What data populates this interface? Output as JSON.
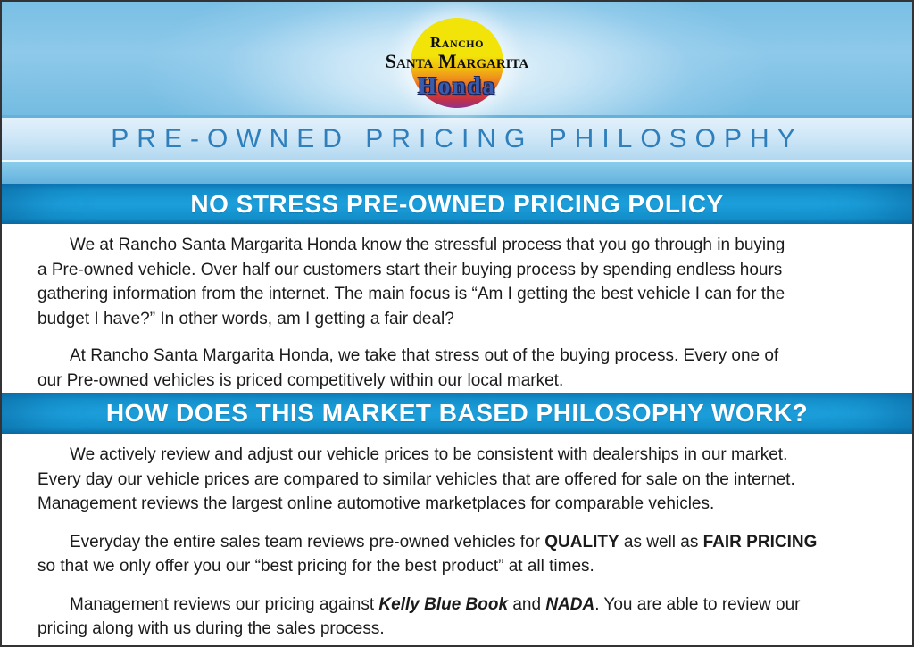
{
  "colors": {
    "page_border": "#333336",
    "header_sky_blue": "#79bfe4",
    "header_glow": "#e8f5fd",
    "title_band_bg_top": "#e3f1fb",
    "title_band_bg_bottom": "#b2d8f0",
    "title_text_blue": "#2e7fbc",
    "sub_band_blue": "#73bce3",
    "banner_blue": "#1ea4e0",
    "banner_blue_edge": "#0d7cba",
    "banner_text": "#ffffff",
    "body_text": "#1b1b1b",
    "logo_yellow": "#f2e409",
    "logo_orange": "#ee831f",
    "logo_red": "#dd3b28",
    "logo_purple": "#8e3390",
    "logo_honda_blue": "#3a5cad"
  },
  "logo": {
    "line1": "Rancho",
    "line2": "Santa Margarita",
    "brand": "Honda"
  },
  "title": "PRE-OWNED PRICING PHILOSOPHY",
  "sections": [
    {
      "banner": "NO STRESS PRE-OWNED PRICING POLICY",
      "paragraphs": [
        {
          "lines": [
            [
              {
                "t": "We at Rancho Santa Margarita Honda know the stressful process that you go through in buying"
              }
            ],
            [
              {
                "t": "a Pre-owned vehicle. Over half our customers start their buying process by spending endless hours"
              }
            ],
            [
              {
                "t": "gathering information from the internet. The main focus is “Am I getting the best vehicle I can for the"
              }
            ],
            [
              {
                "t": "budget I have?” In other words, am I getting a fair deal?"
              }
            ]
          ]
        },
        {
          "lines": [
            [
              {
                "t": "At Rancho Santa Margarita Honda, we take that stress out of the buying process. Every one of"
              }
            ],
            [
              {
                "t": "our Pre-owned vehicles is priced competitively within our local market."
              }
            ]
          ]
        }
      ]
    },
    {
      "banner": "HOW DOES THIS MARKET BASED PHILOSOPHY WORK?",
      "paragraphs": [
        {
          "lines": [
            [
              {
                "t": "We actively review and adjust our vehicle prices to be consistent with dealerships in our market."
              }
            ],
            [
              {
                "t": "Every day our vehicle prices are compared to similar vehicles that are offered for sale on the internet."
              }
            ],
            [
              {
                "t": "Management reviews the largest online automotive marketplaces for comparable vehicles."
              }
            ]
          ]
        },
        {
          "lines": [
            [
              {
                "t": "Everyday the entire sales team reviews pre-owned vehicles for "
              },
              {
                "t": "QUALITY",
                "b": true
              },
              {
                "t": " as well as "
              },
              {
                "t": "FAIR PRICING",
                "b": true
              }
            ],
            [
              {
                "t": "so that we only offer you our “best pricing for the best product” at all times."
              }
            ]
          ]
        },
        {
          "lines": [
            [
              {
                "t": "Management reviews our pricing against "
              },
              {
                "t": "Kelly Blue Book",
                "b": true,
                "i": true
              },
              {
                "t": " and "
              },
              {
                "t": "NADA",
                "b": true,
                "i": true
              },
              {
                "t": ". You are able to review our"
              }
            ],
            [
              {
                "t": "pricing along with us during the sales process."
              }
            ]
          ]
        }
      ]
    }
  ]
}
